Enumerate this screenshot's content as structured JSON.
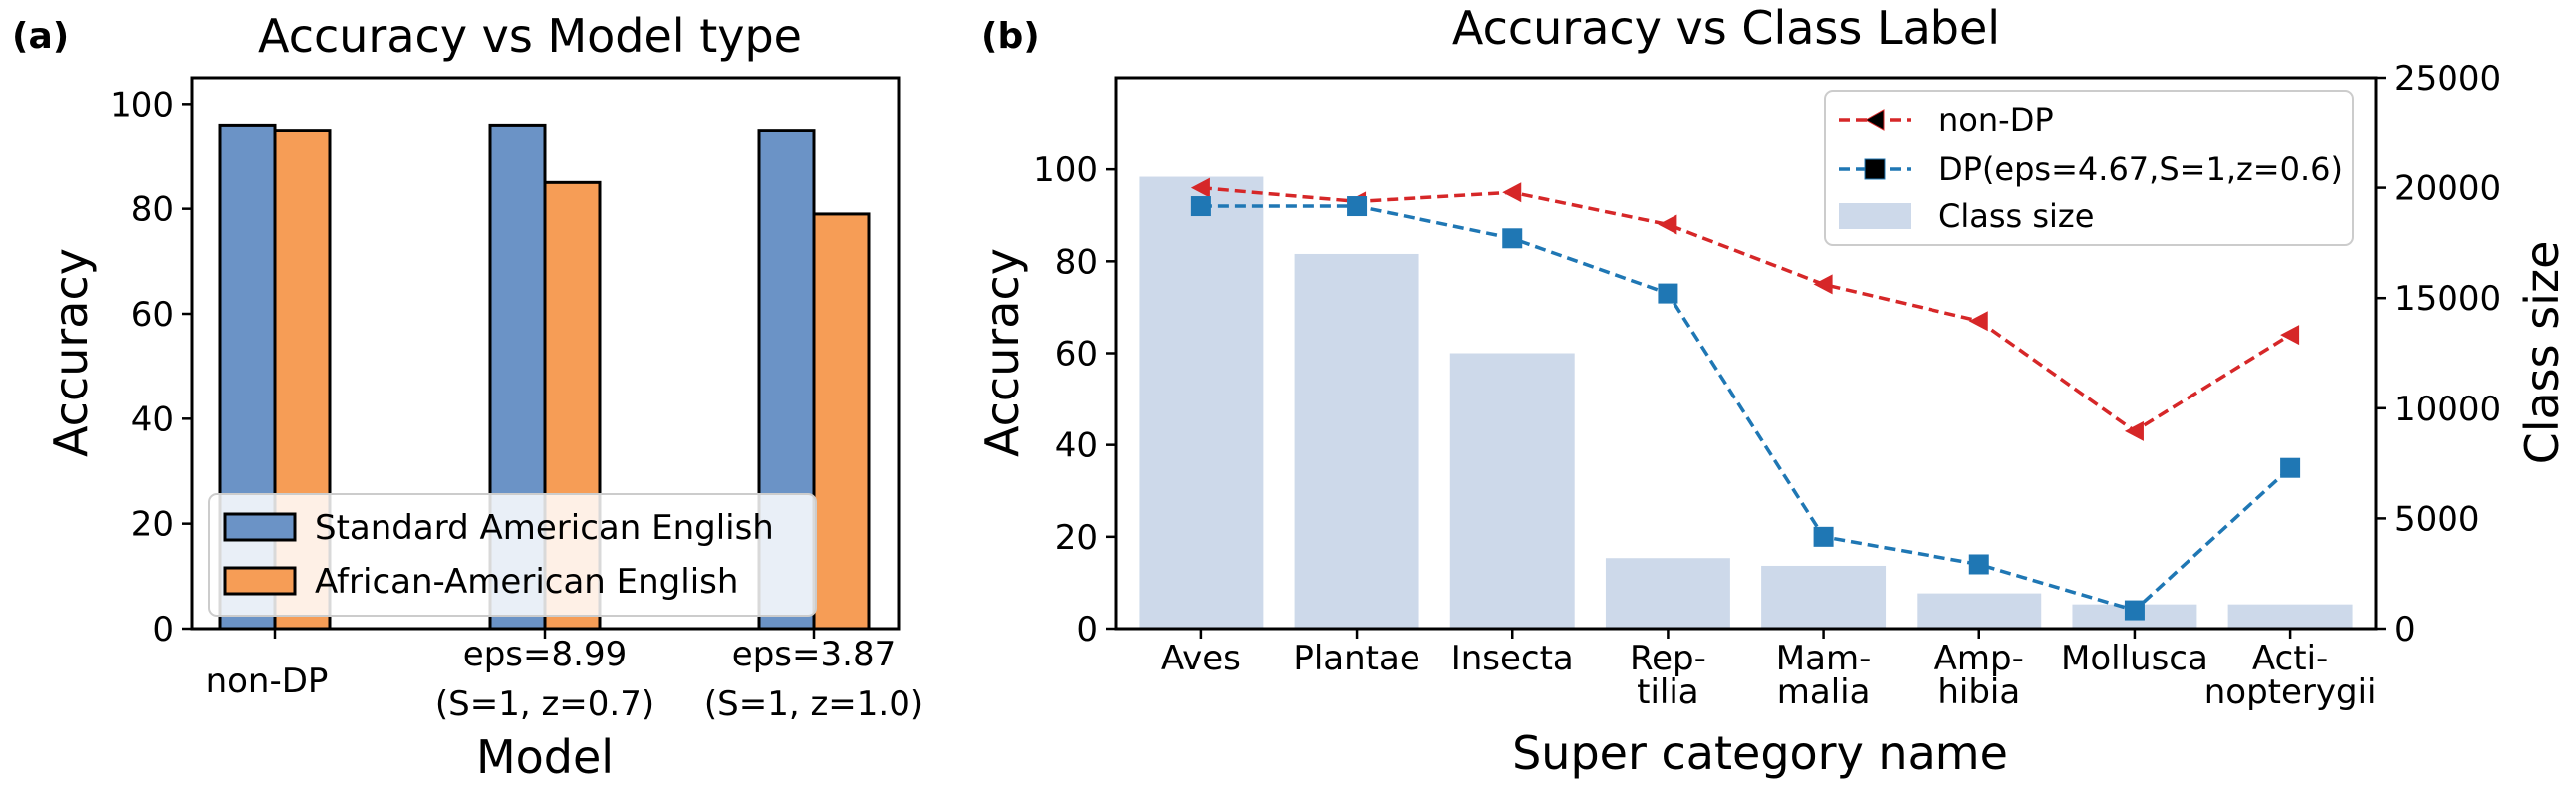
{
  "panel_labels": [
    "(a)",
    "(b)"
  ],
  "chart_data": [
    {
      "type": "bar",
      "panel": "(a)",
      "title": "Accuracy vs Model type",
      "xlabel": "Model",
      "ylabel": "Accuracy",
      "ylim": [
        0,
        105
      ],
      "yticks": [
        0,
        20,
        40,
        60,
        80,
        100
      ],
      "categories": [
        [
          "non-DP"
        ],
        [
          "eps=8.99",
          "(S=1, z=0.7)"
        ],
        [
          "eps=3.87",
          "(S=1, z=1.0)"
        ]
      ],
      "series": [
        {
          "name": "Standard American English",
          "color": "#6b93c6",
          "values": [
            96,
            96,
            95
          ]
        },
        {
          "name": "African-American English",
          "color": "#f69d56",
          "values": [
            95,
            85,
            79
          ]
        }
      ],
      "legend_location": "lower-left",
      "grid": false
    },
    {
      "type": "bar+line",
      "panel": "(b)",
      "title": "Accuracy vs Class Label",
      "xlabel": "Super category name",
      "ylabel": "Accuracy",
      "ylabel_right": "Class size",
      "ylim": [
        0,
        120
      ],
      "yticks": [
        0,
        20,
        40,
        60,
        80,
        100
      ],
      "ylim_right": [
        0,
        25000
      ],
      "yticks_right": [
        0,
        5000,
        10000,
        15000,
        20000,
        25000
      ],
      "categories": [
        [
          "Aves"
        ],
        [
          "Plantae"
        ],
        [
          "Insecta"
        ],
        [
          "Rep-",
          "tilia"
        ],
        [
          "Mam-",
          "malia"
        ],
        [
          "Amp-",
          "hibia"
        ],
        [
          "Mollusca"
        ],
        [
          "Acti-",
          "nopterygii"
        ]
      ],
      "bars": {
        "name": "Class size",
        "color": "#cdd9ea",
        "axis": "right",
        "values": [
          20500,
          17000,
          12500,
          3200,
          2850,
          1600,
          1100,
          1100
        ]
      },
      "series": [
        {
          "name": "non-DP",
          "color": "#d62728",
          "style": "dashed",
          "marker": "triangle-left",
          "values": [
            96,
            93,
            95,
            88,
            75,
            67,
            43,
            64
          ]
        },
        {
          "name": "DP(eps=4.67,S=1,z=0.6)",
          "color": "#1f77b4",
          "style": "dashed",
          "marker": "square",
          "values": [
            92,
            92,
            85,
            73,
            20,
            14,
            4,
            35
          ]
        }
      ],
      "legend_location": "upper-right",
      "grid": false
    }
  ]
}
